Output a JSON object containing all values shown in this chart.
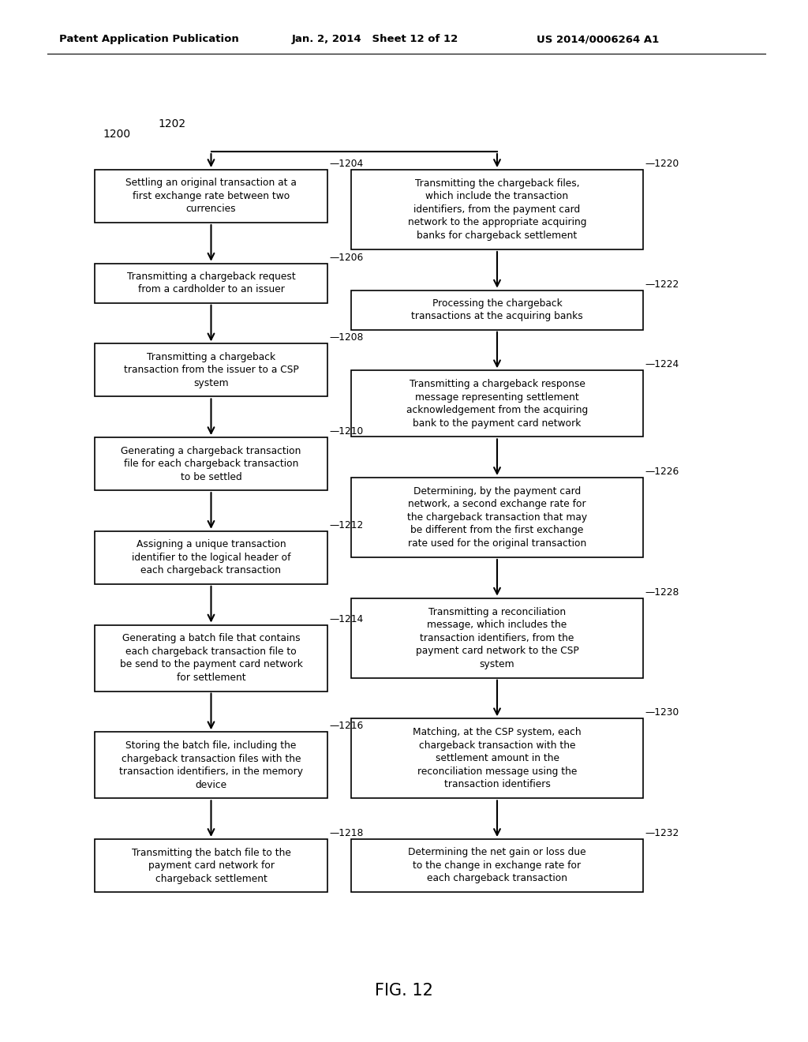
{
  "header_left": "Patent Application Publication",
  "header_mid": "Jan. 2, 2014   Sheet 12 of 12",
  "header_right": "US 2014/0006264 A1",
  "fig_label": "FIG. 12",
  "left_boxes": [
    {
      "id": "1204",
      "text": "Settling an original transaction at a\nfirst exchange rate between two\ncurrencies"
    },
    {
      "id": "1206",
      "text": "Transmitting a chargeback request\nfrom a cardholder to an issuer"
    },
    {
      "id": "1208",
      "text": "Transmitting a chargeback\ntransaction from the issuer to a CSP\nsystem"
    },
    {
      "id": "1210",
      "text": "Generating a chargeback transaction\nfile for each chargeback transaction\nto be settled"
    },
    {
      "id": "1212",
      "text": "Assigning a unique transaction\nidentifier to the logical header of\neach chargeback transaction"
    },
    {
      "id": "1214",
      "text": "Generating a batch file that contains\neach chargeback transaction file to\nbe send to the payment card network\nfor settlement"
    },
    {
      "id": "1216",
      "text": "Storing the batch file, including the\nchargeback transaction files with the\ntransaction identifiers, in the memory\ndevice"
    },
    {
      "id": "1218",
      "text": "Transmitting the batch file to the\npayment card network for\nchargeback settlement"
    }
  ],
  "right_boxes": [
    {
      "id": "1220",
      "text": "Transmitting the chargeback files,\nwhich include the transaction\nidentifiers, from the payment card\nnetwork to the appropriate acquiring\nbanks for chargeback settlement"
    },
    {
      "id": "1222",
      "text": "Processing the chargeback\ntransactions at the acquiring banks"
    },
    {
      "id": "1224",
      "text": "Transmitting a chargeback response\nmessage representing settlement\nacknowledgement from the acquiring\nbank to the payment card network"
    },
    {
      "id": "1226",
      "text": "Determining, by the payment card\nnetwork, a second exchange rate for\nthe chargeback transaction that may\nbe different from the first exchange\nrate used for the original transaction"
    },
    {
      "id": "1228",
      "text": "Transmitting a reconciliation\nmessage, which includes the\ntransaction identifiers, from the\npayment card network to the CSP\nsystem"
    },
    {
      "id": "1230",
      "text": "Matching, at the CSP system, each\nchargeback transaction with the\nsettlement amount in the\nreconciliation message using the\ntransaction identifiers"
    },
    {
      "id": "1232",
      "text": "Determining the net gain or loss due\nto the change in exchange rate for\neach chargeback transaction"
    }
  ],
  "bg_color": "#ffffff",
  "box_edge_color": "#000000",
  "text_color": "#000000"
}
